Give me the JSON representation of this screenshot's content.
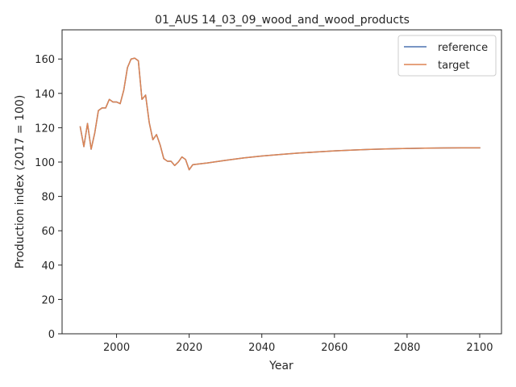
{
  "chart_data": {
    "type": "line",
    "title": "01_AUS 14_03_09_wood_and_wood_products",
    "xlabel": "Year",
    "ylabel": "Production index (2017 = 100)",
    "xlim": [
      1985,
      2106
    ],
    "ylim": [
      0,
      177
    ],
    "xticks": [
      2000,
      2020,
      2040,
      2060,
      2080,
      2100
    ],
    "yticks": [
      0,
      20,
      40,
      60,
      80,
      100,
      120,
      140,
      160
    ],
    "grid": false,
    "legend_position": "top-right",
    "series": [
      {
        "name": "reference",
        "color": "#4c72b0",
        "x": [
          1990,
          1991,
          1992,
          1993,
          1994,
          1995,
          1996,
          1997,
          1998,
          1999,
          2000,
          2001,
          2002,
          2003,
          2004,
          2005,
          2006,
          2007,
          2008,
          2009,
          2010,
          2011,
          2012,
          2013,
          2014,
          2015,
          2016,
          2017,
          2018,
          2019,
          2020,
          2021,
          2025,
          2030,
          2035,
          2040,
          2045,
          2050,
          2055,
          2060,
          2065,
          2070,
          2075,
          2080,
          2085,
          2090,
          2095,
          2100
        ],
        "y": [
          120.5,
          109.0,
          122.5,
          107.5,
          117.0,
          130.0,
          131.5,
          131.5,
          136.5,
          135.0,
          135.0,
          134.0,
          142.0,
          155.0,
          160.0,
          160.5,
          159.0,
          136.5,
          139.0,
          123.0,
          113.0,
          116.0,
          110.0,
          102.0,
          100.5,
          100.5,
          98.0,
          100.0,
          103.0,
          101.5,
          95.5,
          98.5,
          99.5,
          101.0,
          102.4,
          103.5,
          104.4,
          105.2,
          105.9,
          106.5,
          107.0,
          107.4,
          107.7,
          107.9,
          108.1,
          108.2,
          108.3,
          108.3
        ]
      },
      {
        "name": "target",
        "color": "#dd8452",
        "x": [
          1990,
          1991,
          1992,
          1993,
          1994,
          1995,
          1996,
          1997,
          1998,
          1999,
          2000,
          2001,
          2002,
          2003,
          2004,
          2005,
          2006,
          2007,
          2008,
          2009,
          2010,
          2011,
          2012,
          2013,
          2014,
          2015,
          2016,
          2017,
          2018,
          2019,
          2020,
          2021,
          2025,
          2030,
          2035,
          2040,
          2045,
          2050,
          2055,
          2060,
          2065,
          2070,
          2075,
          2080,
          2085,
          2090,
          2095,
          2100
        ],
        "y": [
          120.5,
          109.0,
          122.5,
          107.5,
          117.0,
          130.0,
          131.5,
          131.5,
          136.5,
          135.0,
          135.0,
          134.0,
          142.0,
          155.0,
          160.0,
          160.5,
          159.0,
          136.5,
          139.0,
          123.0,
          113.0,
          116.0,
          110.0,
          102.0,
          100.5,
          100.5,
          98.0,
          100.0,
          103.0,
          101.5,
          95.5,
          98.5,
          99.5,
          101.0,
          102.4,
          103.5,
          104.4,
          105.2,
          105.9,
          106.5,
          107.0,
          107.4,
          107.7,
          107.9,
          108.1,
          108.2,
          108.3,
          108.3
        ]
      }
    ]
  }
}
